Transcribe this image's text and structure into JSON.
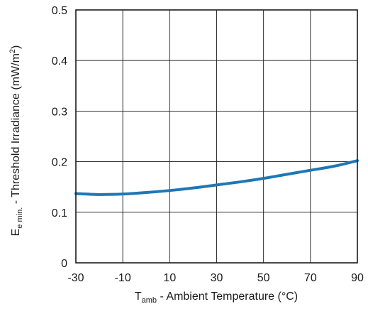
{
  "chart_data": {
    "type": "line",
    "title": "",
    "xlabel": {
      "symbol": "T",
      "subscript": "amb",
      "text": " - Ambient Temperature (°C)"
    },
    "ylabel": {
      "symbol": "E",
      "subscript": "e min.",
      "text": " - Threshold Irradiance (mW/m",
      "superscript": "2",
      "closing": ")"
    },
    "xlim": [
      -30,
      90
    ],
    "ylim": [
      0,
      0.5
    ],
    "x_ticks": [
      -30,
      -10,
      10,
      30,
      50,
      70,
      90
    ],
    "y_ticks": [
      0,
      0.1,
      0.2,
      0.3,
      0.4,
      0.5
    ],
    "x_tick_labels": [
      "-30",
      "-10",
      "10",
      "30",
      "50",
      "70",
      "90"
    ],
    "y_tick_labels": [
      "0",
      "0.1",
      "0.2",
      "0.3",
      "0.4",
      "0.5"
    ],
    "grid": true,
    "series": [
      {
        "color": "#1f77b4",
        "x": [
          -30,
          -20,
          -10,
          0,
          10,
          20,
          30,
          40,
          50,
          60,
          70,
          80,
          90
        ],
        "y": [
          0.137,
          0.135,
          0.136,
          0.139,
          0.143,
          0.148,
          0.154,
          0.16,
          0.167,
          0.175,
          0.183,
          0.191,
          0.202
        ]
      }
    ]
  }
}
